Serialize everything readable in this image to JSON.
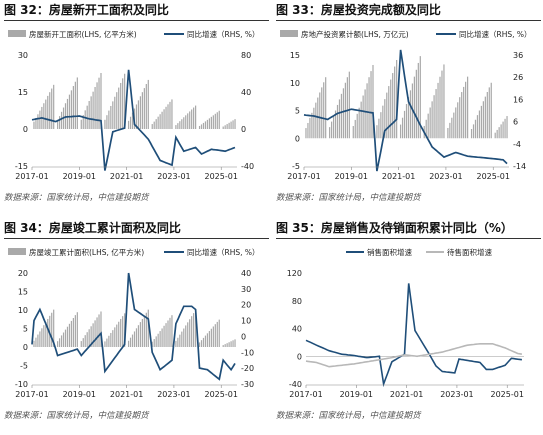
{
  "colors": {
    "bar": "#a9a9a9",
    "line": "#1f4e79",
    "sales": "#1f4e79",
    "pending": "#b8b8b8"
  },
  "figures": [
    {
      "title": "图 32：房屋新开工面积及同比",
      "source": "数据来源：国家统计局，中信建投期货"
    },
    {
      "title": "图 33：房屋投资完成额及同比",
      "source": "数据来源：国家统计局，中信建投期货"
    },
    {
      "title": "图 34：房屋竣工累计面积及同比",
      "source": "数据来源：国家统计局，中信建投期货"
    },
    {
      "title": "图 35：房屋销售及待销面积累计同比（%）",
      "source": "数据来源：国家统计局，中信建投期货"
    }
  ],
  "chart_data": [
    {
      "type": "bar",
      "legend": [
        "房屋新开工面积(LHS, 亿平方米)",
        "同比增速（RHS, %）"
      ],
      "xticks": [
        "2017-01",
        "2019-01",
        "2021-01",
        "2023-01",
        "2025-01"
      ],
      "left_axis": {
        "min": -15,
        "max": 30,
        "ticks": [
          -15,
          0,
          15,
          30
        ]
      },
      "right_axis": {
        "min": -40,
        "max": 80,
        "ticks": [
          -40,
          0,
          40,
          80
        ]
      },
      "series": [
        {
          "kind": "bar",
          "axis": "left",
          "name": "房屋新开工面积(LHS, 亿平方米)",
          "peaks": [
            17.9,
            20.9,
            22.7,
            22.4,
            19.9,
            12.0,
            9.5,
            7.4,
            6.0
          ],
          "start": "2017-01",
          "months": 104
        },
        {
          "kind": "line",
          "axis": "right",
          "name": "同比增速（RHS, %）",
          "anchors": [
            [
              "2017-01",
              10
            ],
            [
              "2017-06",
              12
            ],
            [
              "2018-01",
              8
            ],
            [
              "2018-06",
              13
            ],
            [
              "2019-01",
              14
            ],
            [
              "2019-06",
              11
            ],
            [
              "2019-12",
              9
            ],
            [
              "2020-02",
              -45
            ],
            [
              "2020-06",
              -3
            ],
            [
              "2020-12",
              1
            ],
            [
              "2021-02",
              64
            ],
            [
              "2021-05",
              5
            ],
            [
              "2021-12",
              -11
            ],
            [
              "2022-06",
              -34
            ],
            [
              "2022-12",
              -39
            ],
            [
              "2023-02",
              -9
            ],
            [
              "2023-06",
              -24
            ],
            [
              "2023-12",
              -20
            ],
            [
              "2024-03",
              -27
            ],
            [
              "2024-08",
              -22
            ],
            [
              "2024-12",
              -23
            ],
            [
              "2025-03",
              -24
            ],
            [
              "2025-08",
              -20
            ]
          ]
        }
      ]
    },
    {
      "type": "bar",
      "legend": [
        "房地产投资累计额(LHS, 万亿元)",
        "同比增速（RHS, %）"
      ],
      "xticks": [
        "2017-01",
        "2019-01",
        "2021-01",
        "2023-01",
        "2025-01"
      ],
      "left_axis": {
        "min": -5,
        "max": 15,
        "ticks": [
          -5,
          0,
          5,
          10,
          15
        ]
      },
      "right_axis": {
        "min": -14,
        "max": 36,
        "ticks": [
          -14,
          -4,
          6,
          16,
          26,
          36
        ]
      },
      "series": [
        {
          "kind": "bar",
          "axis": "left",
          "name": "房地产投资累计额(LHS, 万亿元)",
          "peaks": [
            11.0,
            12.0,
            13.2,
            14.1,
            14.8,
            13.3,
            11.1,
            10.0,
            6.0
          ],
          "start": "2017-01",
          "months": 104
        },
        {
          "kind": "line",
          "axis": "right",
          "name": "同比增速（RHS, %）",
          "anchors": [
            [
              "2017-01",
              9
            ],
            [
              "2017-06",
              8.5
            ],
            [
              "2018-01",
              7
            ],
            [
              "2018-06",
              9.7
            ],
            [
              "2019-01",
              11.6
            ],
            [
              "2019-12",
              9.9
            ],
            [
              "2020-02",
              -16.3
            ],
            [
              "2020-06",
              1.9
            ],
            [
              "2020-12",
              7.0
            ],
            [
              "2021-02",
              38.3
            ],
            [
              "2021-06",
              15
            ],
            [
              "2021-12",
              4.4
            ],
            [
              "2022-06",
              -5.4
            ],
            [
              "2022-12",
              -10
            ],
            [
              "2023-06",
              -7.9
            ],
            [
              "2023-12",
              -9.6
            ],
            [
              "2024-06",
              -10.1
            ],
            [
              "2024-12",
              -10.6
            ],
            [
              "2025-06",
              -11.2
            ],
            [
              "2025-08",
              -12.9
            ]
          ]
        }
      ]
    },
    {
      "type": "bar",
      "legend": [
        "房屋竣工累计面积(LHS, 亿平方米)",
        "同比增速（RHS, %）"
      ],
      "xticks": [
        "2017-01",
        "2019-01",
        "2021-01",
        "2023-01",
        "2025-01"
      ],
      "left_axis": {
        "min": -10,
        "max": 20,
        "ticks": [
          -10,
          -5,
          0,
          5,
          10,
          15,
          20
        ]
      },
      "right_axis": {
        "min": -30,
        "max": 40,
        "ticks": [
          -30,
          -20,
          -10,
          0,
          10,
          20,
          30,
          40
        ]
      },
      "series": [
        {
          "kind": "bar",
          "axis": "left",
          "name": "房屋竣工累计面积(LHS, 亿平方米)",
          "peaks": [
            10.1,
            9.4,
            9.6,
            9.1,
            10.1,
            8.6,
            10.0,
            7.4,
            3.1
          ],
          "start": "2017-01",
          "months": 104
        },
        {
          "kind": "line",
          "axis": "right",
          "name": "同比增速（RHS, %）",
          "anchors": [
            [
              "2017-01",
              -5
            ],
            [
              "2017-02",
              10
            ],
            [
              "2017-05",
              17
            ],
            [
              "2017-12",
              -4
            ],
            [
              "2018-02",
              -12
            ],
            [
              "2018-12",
              -8
            ],
            [
              "2019-02",
              -12
            ],
            [
              "2019-12",
              2
            ],
            [
              "2020-02",
              -22
            ],
            [
              "2020-12",
              -5
            ],
            [
              "2021-02",
              40
            ],
            [
              "2021-05",
              17
            ],
            [
              "2021-12",
              11
            ],
            [
              "2022-02",
              -10
            ],
            [
              "2022-06",
              -21
            ],
            [
              "2022-12",
              -15
            ],
            [
              "2023-02",
              8
            ],
            [
              "2023-06",
              19
            ],
            [
              "2023-10",
              19
            ],
            [
              "2023-12",
              17
            ],
            [
              "2024-02",
              -20
            ],
            [
              "2024-06",
              -21
            ],
            [
              "2024-12",
              -27
            ],
            [
              "2025-02",
              -15
            ],
            [
              "2025-06",
              -21
            ],
            [
              "2025-08",
              -17
            ]
          ]
        }
      ]
    },
    {
      "type": "line",
      "legend": [
        "销售面积增速",
        "待售面积增速"
      ],
      "xticks": [
        "2017-01",
        "2019-01",
        "2021-01",
        "2023-01",
        "2025-01"
      ],
      "left_axis": {
        "min": -40,
        "max": 120,
        "ticks": [
          -40,
          0,
          40,
          80,
          120
        ]
      },
      "series": [
        {
          "kind": "line",
          "name": "销售面积增速",
          "anchors": [
            [
              "2017-01",
              23
            ],
            [
              "2017-06",
              16
            ],
            [
              "2017-12",
              8
            ],
            [
              "2018-06",
              3
            ],
            [
              "2018-12",
              1
            ],
            [
              "2019-06",
              -2
            ],
            [
              "2019-12",
              -0.1
            ],
            [
              "2020-02",
              -40
            ],
            [
              "2020-06",
              -8
            ],
            [
              "2020-12",
              3
            ],
            [
              "2021-02",
              105
            ],
            [
              "2021-05",
              37
            ],
            [
              "2021-12",
              2
            ],
            [
              "2022-03",
              -14
            ],
            [
              "2022-06",
              -22
            ],
            [
              "2022-12",
              -24
            ],
            [
              "2023-02",
              -4
            ],
            [
              "2023-06",
              -6
            ],
            [
              "2023-12",
              -9
            ],
            [
              "2024-03",
              -19
            ],
            [
              "2024-06",
              -19
            ],
            [
              "2024-12",
              -13
            ],
            [
              "2025-03",
              -3
            ],
            [
              "2025-08",
              -5
            ]
          ]
        },
        {
          "kind": "line",
          "name": "待售面积增速",
          "anchors": [
            [
              "2017-01",
              -7
            ],
            [
              "2017-06",
              -9
            ],
            [
              "2017-12",
              -15
            ],
            [
              "2018-06",
              -13
            ],
            [
              "2018-12",
              -11
            ],
            [
              "2019-06",
              -8
            ],
            [
              "2019-12",
              -5
            ],
            [
              "2020-06",
              -2
            ],
            [
              "2020-12",
              2
            ],
            [
              "2021-06",
              0
            ],
            [
              "2021-12",
              3
            ],
            [
              "2022-06",
              6
            ],
            [
              "2022-12",
              11
            ],
            [
              "2023-06",
              16
            ],
            [
              "2023-12",
              18
            ],
            [
              "2024-06",
              18
            ],
            [
              "2024-12",
              12
            ],
            [
              "2025-06",
              4
            ],
            [
              "2025-08",
              3
            ]
          ]
        }
      ]
    }
  ]
}
